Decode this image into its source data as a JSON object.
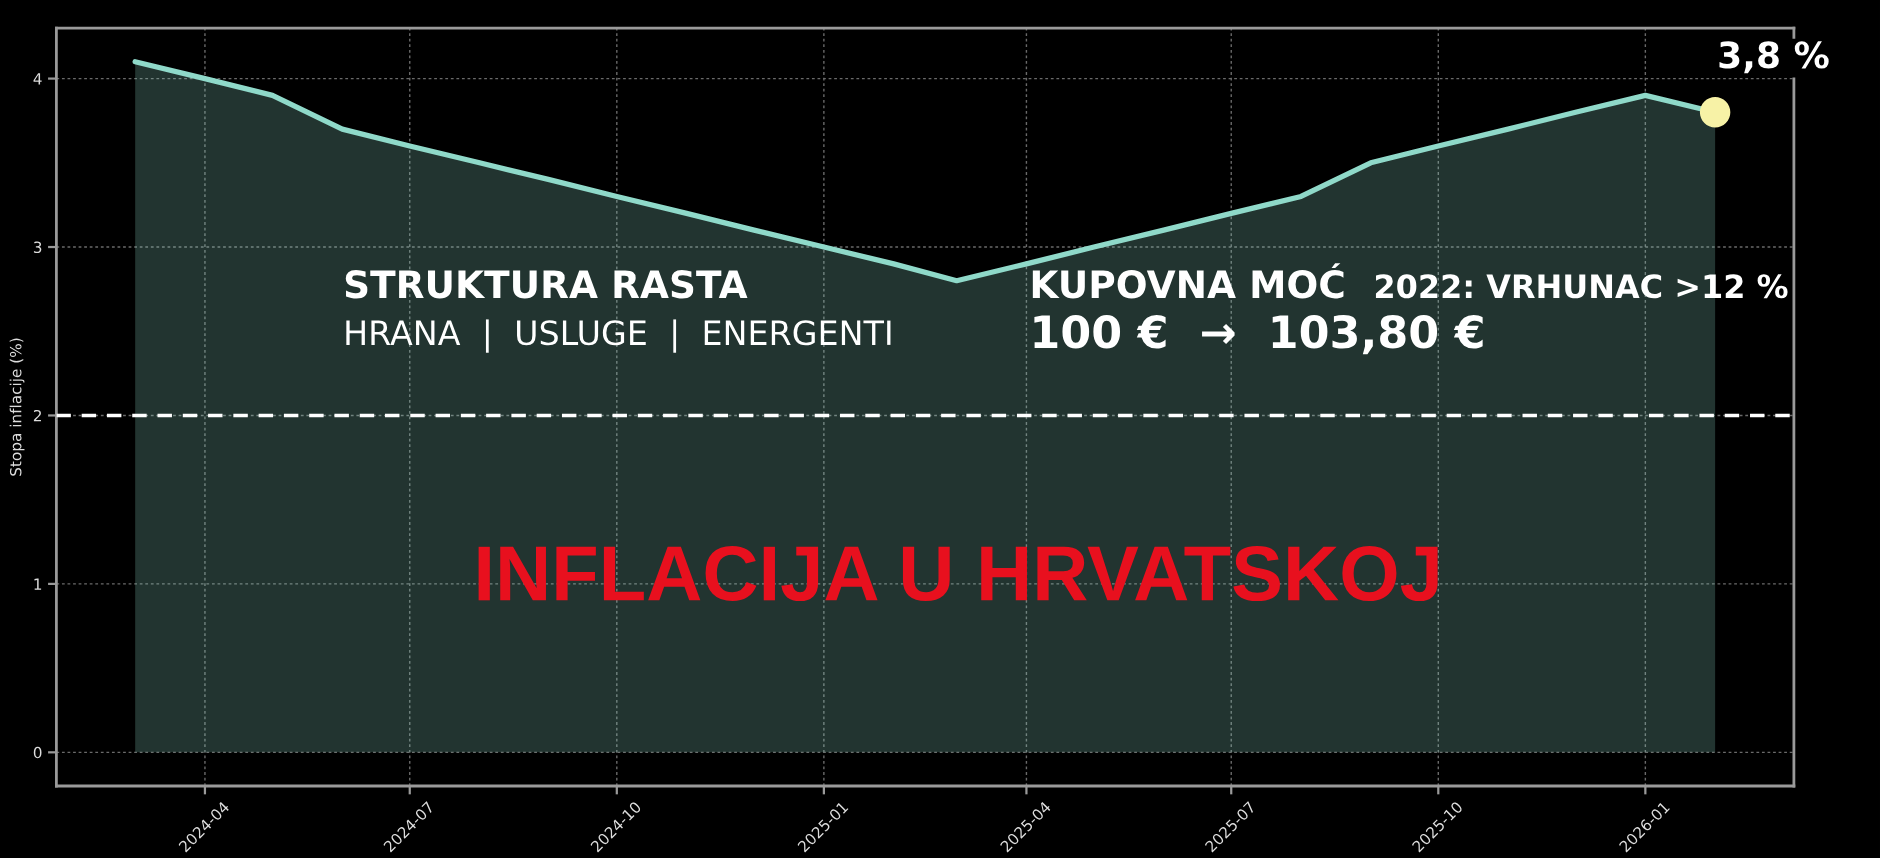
{
  "chart_data": {
    "type": "area",
    "title": "INFLACIJA U HRVATSKOJ",
    "ylabel": "Stopa inflacije (%)",
    "x": [
      "2024-03",
      "2024-04",
      "2024-05",
      "2024-06",
      "2024-07",
      "2024-08",
      "2024-09",
      "2024-10",
      "2024-11",
      "2024-12",
      "2025-01",
      "2025-02",
      "2025-03",
      "2025-04",
      "2025-05",
      "2025-06",
      "2025-07",
      "2025-08",
      "2025-09",
      "2025-10",
      "2025-11",
      "2025-12",
      "2026-01",
      "2026-02"
    ],
    "series": [
      {
        "color": "#8fd9c9",
        "values": [
          4.1,
          4.0,
          3.9,
          3.7,
          3.6,
          3.5,
          3.4,
          3.3,
          3.2,
          3.1,
          3.0,
          2.9,
          2.8,
          2.9,
          3.0,
          3.1,
          3.2,
          3.3,
          3.5,
          3.6,
          3.7,
          3.8,
          3.9,
          3.8
        ]
      },
      {
        "type": "scatter",
        "color": "#f7f2a6",
        "x": [
          "2026-02"
        ],
        "values": [
          3.8
        ]
      }
    ],
    "xlim": [
      "2024-01-26",
      "2026-03-08"
    ],
    "xticks": [
      "2024-04",
      "2024-07",
      "2024-10",
      "2025-01",
      "2025-04",
      "2025-07",
      "2025-10",
      "2026-01"
    ],
    "ylim": [
      -0.2,
      4.3
    ],
    "yticks": [
      0,
      1,
      2,
      3,
      4
    ],
    "ref_lines": [
      {
        "axis": "y",
        "value": 2,
        "color": "#ffffff",
        "line_style": "dashed"
      }
    ],
    "grid": true,
    "annotations": [
      "STRUKTURA RASTA",
      "HRANA  |  USLUGE  |  ENERGENTI",
      "KUPOVNA MOĆ",
      "2022: VRHUNAC >12 %",
      "100 €  →  103,80 €",
      {
        "text": "3,8 %",
        "x": "2026-02",
        "y": 3.8
      }
    ]
  }
}
